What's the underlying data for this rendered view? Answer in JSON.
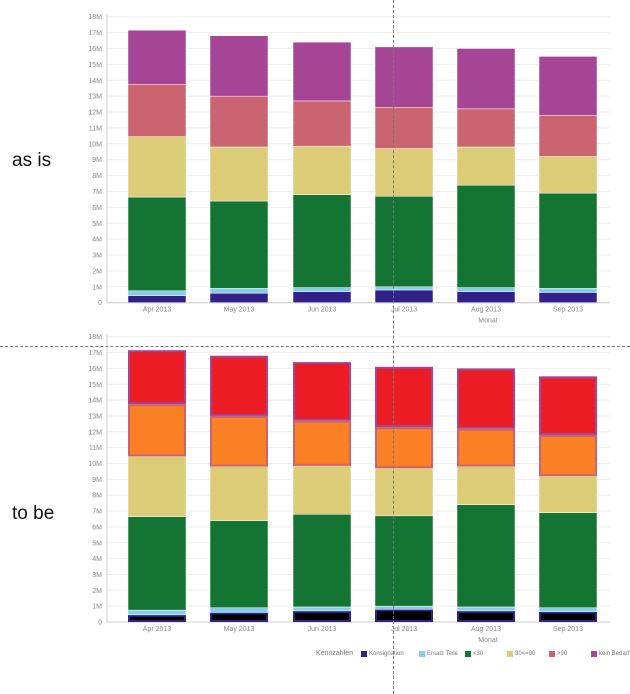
{
  "labels": {
    "top": "as is",
    "bottom": "to be"
  },
  "chart_data": [
    {
      "type": "bar",
      "stacked": true,
      "title": "",
      "xlabel": "Monat",
      "ylabel": "",
      "ylim": [
        0,
        18000000
      ],
      "yticks": [
        "0",
        "1M",
        "2M",
        "3M",
        "4M",
        "5M",
        "6M",
        "7M",
        "8M",
        "9M",
        "10M",
        "11M",
        "12M",
        "13M",
        "14M",
        "15M",
        "16M",
        "17M",
        "18M"
      ],
      "grid": true,
      "categories": [
        "Apr 2013",
        "May 2013",
        "Jun 2013",
        "Jul 2013",
        "Aug 2013",
        "Sep 2013"
      ],
      "series": [
        {
          "name": "Konsignation",
          "color": "#33218a",
          "values": [
            0.45,
            0.6,
            0.7,
            0.8,
            0.7,
            0.65
          ]
        },
        {
          "name": "Ersatz Teile",
          "color": "#86cde9",
          "values": [
            0.3,
            0.3,
            0.25,
            0.2,
            0.25,
            0.25
          ]
        },
        {
          "name": "<30",
          "color": "#137433",
          "values": [
            5.9,
            5.5,
            5.85,
            5.7,
            6.45,
            6.0
          ]
        },
        {
          "name": "30<=90",
          "color": "#dccb77",
          "values": [
            3.8,
            3.4,
            3.05,
            3.0,
            2.4,
            2.3
          ]
        },
        {
          "name": ">90",
          "color": "#cb6471",
          "values": [
            3.3,
            3.2,
            2.85,
            2.6,
            2.4,
            2.6
          ]
        },
        {
          "name": "kein Bedarf",
          "color": "#a64496",
          "values": [
            3.4,
            3.8,
            3.7,
            3.8,
            3.8,
            3.7
          ]
        }
      ],
      "unit": "M"
    },
    {
      "type": "bar",
      "stacked": true,
      "title": "",
      "xlabel": "Monat",
      "ylabel": "",
      "ylim": [
        0,
        18000000
      ],
      "yticks": [
        "0",
        "1M",
        "2M",
        "3M",
        "4M",
        "5M",
        "6M",
        "7M",
        "8M",
        "9M",
        "10M",
        "11M",
        "12M",
        "13M",
        "14M",
        "15M",
        "16M",
        "17M",
        "18M"
      ],
      "grid": true,
      "legend_position": "bottom",
      "legend_title": "Kennzahlen",
      "categories": [
        "Apr 2013",
        "May 2013",
        "Jun 2013",
        "Jul 2013",
        "Aug 2013",
        "Sep 2013"
      ],
      "series": [
        {
          "name": "Konsignation",
          "color": "#000000",
          "border": "#33218a",
          "values": [
            0.45,
            0.6,
            0.7,
            0.8,
            0.7,
            0.65
          ]
        },
        {
          "name": "Ersatz Teile",
          "color": "#86cde9",
          "values": [
            0.3,
            0.3,
            0.25,
            0.2,
            0.25,
            0.25
          ]
        },
        {
          "name": "<30",
          "color": "#137433",
          "values": [
            5.9,
            5.5,
            5.85,
            5.7,
            6.45,
            6.0
          ]
        },
        {
          "name": "30<=90",
          "color": "#dccb77",
          "values": [
            3.8,
            3.4,
            3.05,
            3.0,
            2.4,
            2.3
          ]
        },
        {
          "name": ">90",
          "color": "#fb7f24",
          "border": "#cb6471",
          "values": [
            3.3,
            3.2,
            2.85,
            2.6,
            2.4,
            2.6
          ]
        },
        {
          "name": "kein Bedarf",
          "color": "#ec1c24",
          "border": "#a64496",
          "values": [
            3.4,
            3.8,
            3.7,
            3.8,
            3.8,
            3.7
          ]
        }
      ],
      "unit": "M"
    }
  ],
  "legend": {
    "title": "Kennzahlen",
    "items": [
      {
        "label": "Konsignation",
        "color": "#33218a"
      },
      {
        "label": "Ersatz Teile",
        "color": "#86cde9"
      },
      {
        "label": "<30",
        "color": "#137433"
      },
      {
        "label": "30<=90",
        "color": "#dccb77"
      },
      {
        "label": ">90",
        "color": "#cb6471"
      },
      {
        "label": "kein Bedarf",
        "color": "#a64496"
      }
    ]
  }
}
